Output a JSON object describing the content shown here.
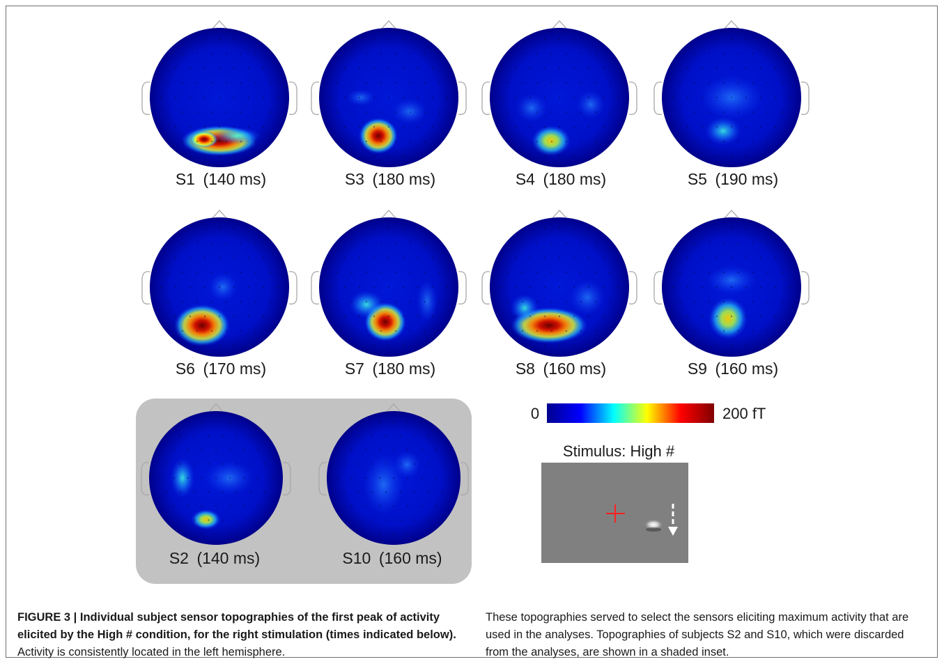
{
  "figure": {
    "panels": [
      {
        "subject": "S1",
        "time": "(140 ms)"
      },
      {
        "subject": "S3",
        "time": "(180 ms)"
      },
      {
        "subject": "S4",
        "time": "(180 ms)"
      },
      {
        "subject": "S5",
        "time": "(190 ms)"
      },
      {
        "subject": "S6",
        "time": "(170 ms)"
      },
      {
        "subject": "S7",
        "time": "(180 ms)"
      },
      {
        "subject": "S8",
        "time": "(160 ms)"
      },
      {
        "subject": "S9",
        "time": "(160 ms)"
      },
      {
        "subject": "S2",
        "time": "(140 ms)"
      },
      {
        "subject": "S10",
        "time": "(160 ms)"
      }
    ],
    "colorbar": {
      "min_label": "0",
      "max_label": "200 fT",
      "colors": [
        "#00008f",
        "#0000ff",
        "#00ffff",
        "#ffff00",
        "#ff0000",
        "#800000"
      ]
    },
    "stimulus": {
      "label": "Stimulus: High #",
      "fixation_color": "#ff2020",
      "background": "#808080"
    }
  },
  "caption": {
    "bold": "FIGURE 3 | Individual subject sensor topographies of the first peak of activity elicited by the High # condition, for the right stimulation (times indicated below).",
    "rest": " Activity is consistently located in the left hemisphere.",
    "right": "These topographies served to select the sensors eliciting maximum activity that are used in the analyses. Topographies of subjects S2 and S10, which were discarded from the analyses, are shown in a shaded inset."
  }
}
